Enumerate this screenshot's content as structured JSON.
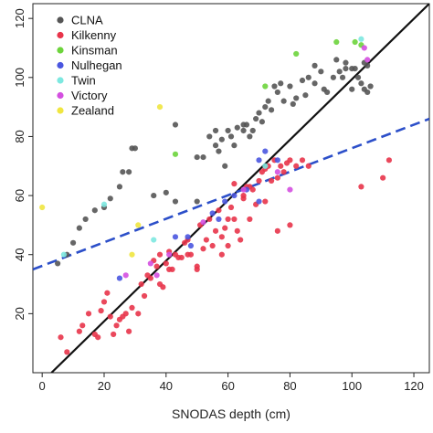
{
  "chart_data": {
    "type": "scatter",
    "xlabel": "SNODAS depth (cm)",
    "ylabel": "",
    "xlim": [
      -3,
      125
    ],
    "ylim": [
      0,
      125
    ],
    "x_ticks": [
      0,
      20,
      40,
      60,
      80,
      100,
      120
    ],
    "y_ticks": [
      20,
      40,
      60,
      80,
      100,
      120
    ],
    "legend_position": "top-left",
    "grid": false,
    "series": [
      {
        "name": "CLNA",
        "color": "#555555",
        "points": [
          [
            5,
            37
          ],
          [
            8,
            40
          ],
          [
            10,
            44
          ],
          [
            12,
            49
          ],
          [
            14,
            52
          ],
          [
            17,
            55
          ],
          [
            20,
            56
          ],
          [
            22,
            59
          ],
          [
            25,
            63
          ],
          [
            26,
            68
          ],
          [
            28,
            68
          ],
          [
            29,
            76
          ],
          [
            30,
            76
          ],
          [
            36,
            60
          ],
          [
            40,
            61
          ],
          [
            43,
            84
          ],
          [
            43,
            58
          ],
          [
            50,
            58
          ],
          [
            50,
            73
          ],
          [
            52,
            73
          ],
          [
            54,
            80
          ],
          [
            56,
            82
          ],
          [
            56,
            77
          ],
          [
            57,
            75
          ],
          [
            58,
            79
          ],
          [
            59,
            70
          ],
          [
            60,
            82
          ],
          [
            61,
            80
          ],
          [
            62,
            77
          ],
          [
            63,
            83
          ],
          [
            65,
            82
          ],
          [
            65,
            84
          ],
          [
            66,
            84
          ],
          [
            67,
            80
          ],
          [
            68,
            82
          ],
          [
            69,
            86
          ],
          [
            70,
            88
          ],
          [
            71,
            85
          ],
          [
            72,
            90
          ],
          [
            73,
            92
          ],
          [
            74,
            89
          ],
          [
            75,
            97
          ],
          [
            76,
            95
          ],
          [
            77,
            98
          ],
          [
            78,
            92
          ],
          [
            80,
            97
          ],
          [
            81,
            91
          ],
          [
            82,
            93
          ],
          [
            84,
            99
          ],
          [
            85,
            94
          ],
          [
            86,
            100
          ],
          [
            88,
            98
          ],
          [
            88,
            104
          ],
          [
            90,
            102
          ],
          [
            91,
            96
          ],
          [
            92,
            95
          ],
          [
            94,
            100
          ],
          [
            95,
            106
          ],
          [
            96,
            102
          ],
          [
            97,
            100
          ],
          [
            98,
            105
          ],
          [
            98,
            103
          ],
          [
            100,
            103
          ],
          [
            100,
            96
          ],
          [
            101,
            103
          ],
          [
            102,
            100
          ],
          [
            103,
            98
          ],
          [
            104,
            96
          ],
          [
            105,
            95
          ],
          [
            106,
            97
          ],
          [
            105,
            104
          ],
          [
            104,
            105
          ]
        ]
      },
      {
        "name": "Kilkenny",
        "color": "#e8344a",
        "points": [
          [
            6,
            12
          ],
          [
            8,
            7
          ],
          [
            12,
            14
          ],
          [
            13,
            16
          ],
          [
            15,
            20
          ],
          [
            17,
            13
          ],
          [
            18,
            12
          ],
          [
            19,
            21
          ],
          [
            20,
            24
          ],
          [
            21,
            27
          ],
          [
            22,
            19
          ],
          [
            23,
            13
          ],
          [
            24,
            16
          ],
          [
            25,
            18
          ],
          [
            26,
            19
          ],
          [
            27,
            20
          ],
          [
            28,
            14
          ],
          [
            29,
            22
          ],
          [
            31,
            20
          ],
          [
            32,
            30
          ],
          [
            33,
            26
          ],
          [
            34,
            33
          ],
          [
            35,
            32
          ],
          [
            36,
            38
          ],
          [
            37,
            36
          ],
          [
            38,
            40
          ],
          [
            39,
            29
          ],
          [
            40,
            37
          ],
          [
            41,
            41
          ],
          [
            42,
            35
          ],
          [
            43,
            40
          ],
          [
            44,
            39
          ],
          [
            45,
            39
          ],
          [
            46,
            44
          ],
          [
            47,
            45
          ],
          [
            48,
            40
          ],
          [
            50,
            36
          ],
          [
            51,
            50
          ],
          [
            52,
            42
          ],
          [
            53,
            45
          ],
          [
            54,
            52
          ],
          [
            55,
            43
          ],
          [
            56,
            48
          ],
          [
            57,
            55
          ],
          [
            58,
            40
          ],
          [
            59,
            49
          ],
          [
            60,
            43
          ],
          [
            61,
            56
          ],
          [
            62,
            52
          ],
          [
            63,
            48
          ],
          [
            64,
            45
          ],
          [
            65,
            59
          ],
          [
            66,
            63
          ],
          [
            67,
            63
          ],
          [
            68,
            62
          ],
          [
            69,
            57
          ],
          [
            70,
            65
          ],
          [
            71,
            68
          ],
          [
            72,
            69
          ],
          [
            73,
            70
          ],
          [
            74,
            65
          ],
          [
            75,
            72
          ],
          [
            76,
            66
          ],
          [
            77,
            70
          ],
          [
            78,
            68
          ],
          [
            79,
            71
          ],
          [
            80,
            72
          ],
          [
            82,
            70
          ],
          [
            84,
            72
          ],
          [
            86,
            70
          ],
          [
            76,
            48
          ],
          [
            80,
            50
          ],
          [
            62,
            64
          ],
          [
            65,
            60
          ],
          [
            72,
            58
          ],
          [
            60,
            52
          ],
          [
            67,
            52
          ],
          [
            58,
            46
          ],
          [
            50,
            35
          ],
          [
            47,
            40
          ],
          [
            41,
            35
          ],
          [
            38,
            30
          ],
          [
            110,
            66
          ],
          [
            112,
            72
          ],
          [
            103,
            63
          ]
        ]
      },
      {
        "name": "Kinsman",
        "color": "#6dd43c",
        "points": [
          [
            43,
            74
          ],
          [
            72,
            97
          ],
          [
            82,
            108
          ],
          [
            103,
            111
          ],
          [
            101,
            112
          ],
          [
            95,
            112
          ]
        ]
      },
      {
        "name": "Nulhegan",
        "color": "#4a56e0",
        "points": [
          [
            25,
            32
          ],
          [
            43,
            46
          ],
          [
            47,
            46
          ],
          [
            55,
            54
          ],
          [
            57,
            52
          ],
          [
            59,
            58
          ],
          [
            62,
            60
          ],
          [
            66,
            62
          ],
          [
            70,
            72
          ],
          [
            72,
            75
          ],
          [
            76,
            72
          ],
          [
            70,
            58
          ],
          [
            48,
            43
          ]
        ]
      },
      {
        "name": "Twin",
        "color": "#7de8e0",
        "points": [
          [
            7,
            40
          ],
          [
            20,
            57
          ],
          [
            36,
            45
          ],
          [
            72,
            70
          ],
          [
            103,
            113
          ]
        ]
      },
      {
        "name": "Victory",
        "color": "#d44fe0",
        "points": [
          [
            27,
            33
          ],
          [
            35,
            37
          ],
          [
            37,
            33
          ],
          [
            41,
            40
          ],
          [
            52,
            51
          ],
          [
            65,
            62
          ],
          [
            76,
            68
          ],
          [
            80,
            62
          ],
          [
            105,
            106
          ],
          [
            104,
            110
          ]
        ]
      },
      {
        "name": "Zealand",
        "color": "#f0e640",
        "points": [
          [
            0,
            56
          ],
          [
            31,
            50
          ],
          [
            38,
            90
          ],
          [
            29,
            40
          ]
        ]
      }
    ],
    "lines": [
      {
        "style": "solid",
        "color": "#111111",
        "points": [
          [
            3,
            0
          ],
          [
            125,
            125
          ]
        ]
      },
      {
        "style": "dashed",
        "color": "#2c4fc9",
        "points": [
          [
            -3,
            35
          ],
          [
            125,
            86
          ]
        ]
      }
    ]
  }
}
